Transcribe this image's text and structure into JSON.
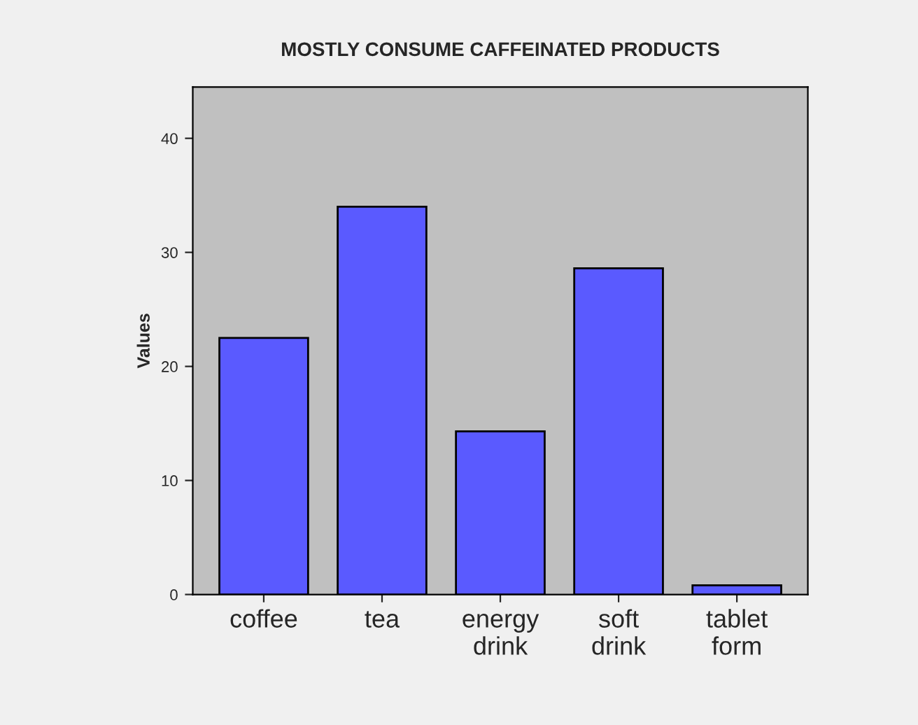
{
  "chart_data": {
    "type": "bar",
    "title": "MOSTLY CONSUME CAFFEINATED PRODUCTS",
    "ylabel": "Values",
    "categories": [
      "coffee",
      "tea",
      "energy\ndrink",
      "soft\ndrink",
      "tablet\nform"
    ],
    "values": [
      22.5,
      34,
      14.3,
      28.6,
      0.8
    ],
    "color": "#5a5aff",
    "ylim": [
      0,
      44.5
    ],
    "yticks": [
      0,
      10,
      20,
      30,
      40
    ],
    "grid": false,
    "legend": false
  }
}
